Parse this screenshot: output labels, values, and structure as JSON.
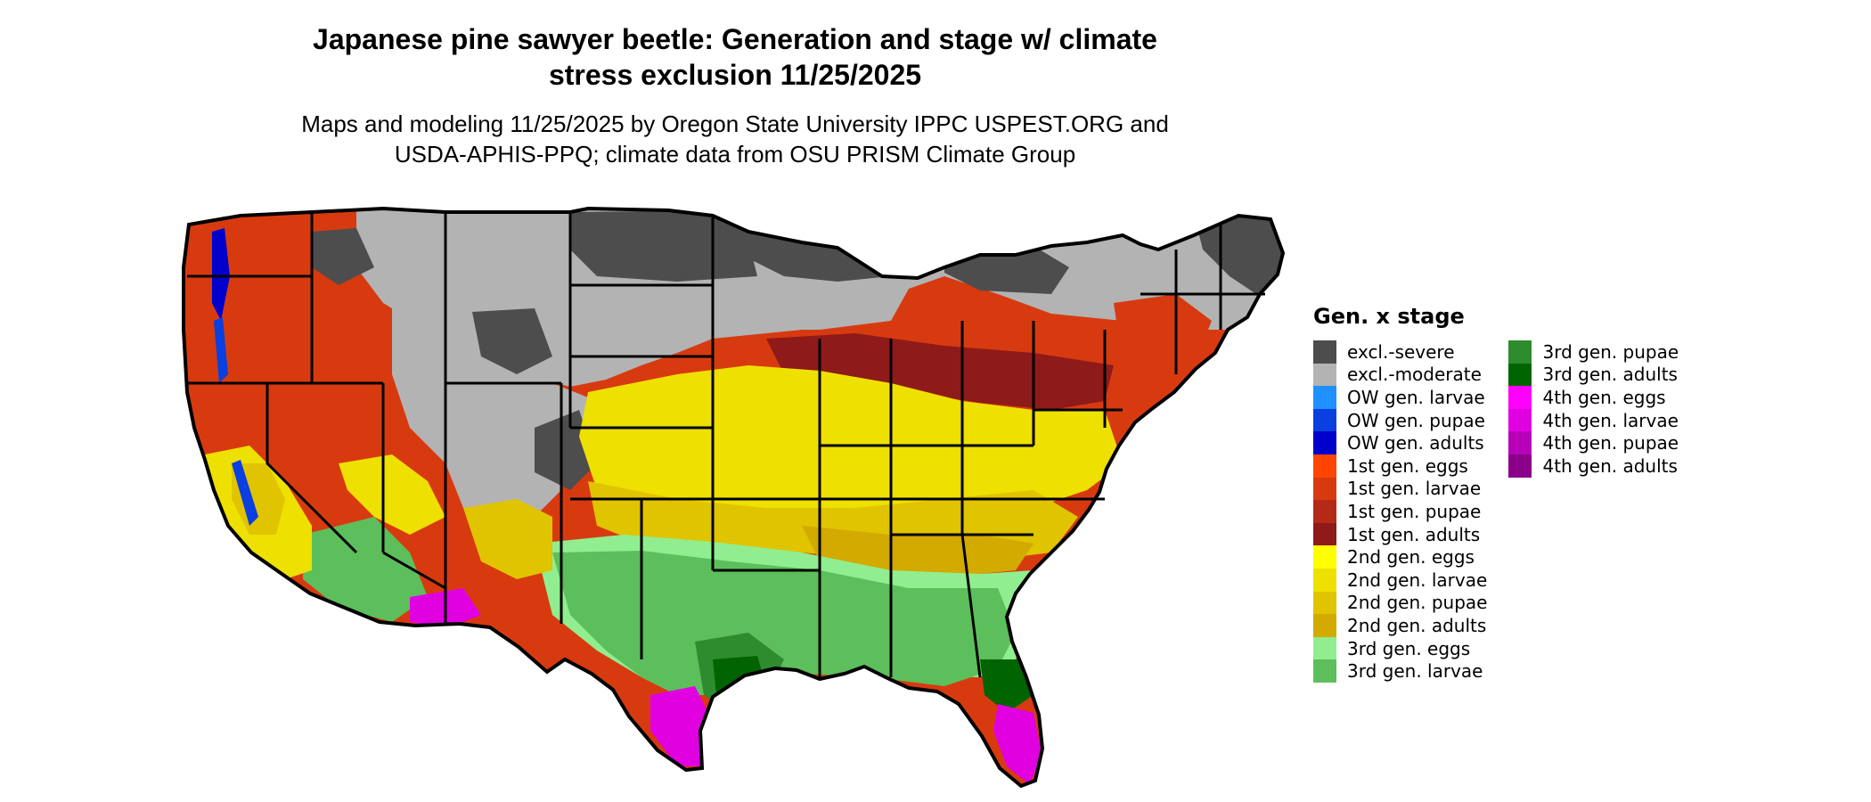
{
  "title": {
    "line1": "Japanese pine sawyer beetle: Generation and stage w/ climate",
    "line2": "stress exclusion 11/25/2025"
  },
  "subtitle": {
    "line1": "Maps and modeling 11/25/2025 by Oregon State University IPPC USPEST.ORG and",
    "line2": "USDA-APHIS-PPQ; climate data from OSU PRISM Climate Group"
  },
  "legend": {
    "title": "Gen. x stage",
    "columns": [
      [
        {
          "label": "excl.-severe",
          "color": "#4d4d4d"
        },
        {
          "label": "excl.-moderate",
          "color": "#b3b3b3"
        },
        {
          "label": "OW gen. larvae",
          "color": "#1e90ff"
        },
        {
          "label": "OW gen. pupae",
          "color": "#0a3fe0"
        },
        {
          "label": "OW gen. adults",
          "color": "#0000cd"
        },
        {
          "label": "1st gen. eggs",
          "color": "#ff4500"
        },
        {
          "label": "1st gen. larvae",
          "color": "#d83a10"
        },
        {
          "label": "1st gen. pupae",
          "color": "#b52a17"
        },
        {
          "label": "1st gen. adults",
          "color": "#8f1a1a"
        },
        {
          "label": "2nd gen. eggs",
          "color": "#ffff00"
        },
        {
          "label": "2nd gen. larvae",
          "color": "#eee000"
        },
        {
          "label": "2nd gen. pupae",
          "color": "#e0c400"
        },
        {
          "label": "2nd gen. adults",
          "color": "#d2aa00"
        },
        {
          "label": "3rd gen. eggs",
          "color": "#90ee90"
        },
        {
          "label": "3rd gen. larvae",
          "color": "#5cbf5c"
        }
      ],
      [
        {
          "label": "3rd gen. pupae",
          "color": "#2e8b2e"
        },
        {
          "label": "3rd gen. adults",
          "color": "#006400"
        },
        {
          "label": "4th gen. eggs",
          "color": "#ff00ff"
        },
        {
          "label": "4th gen. larvae",
          "color": "#e000e0"
        },
        {
          "label": "4th gen. pupae",
          "color": "#b800b8"
        },
        {
          "label": "4th gen. adults",
          "color": "#8b008b"
        }
      ]
    ]
  }
}
